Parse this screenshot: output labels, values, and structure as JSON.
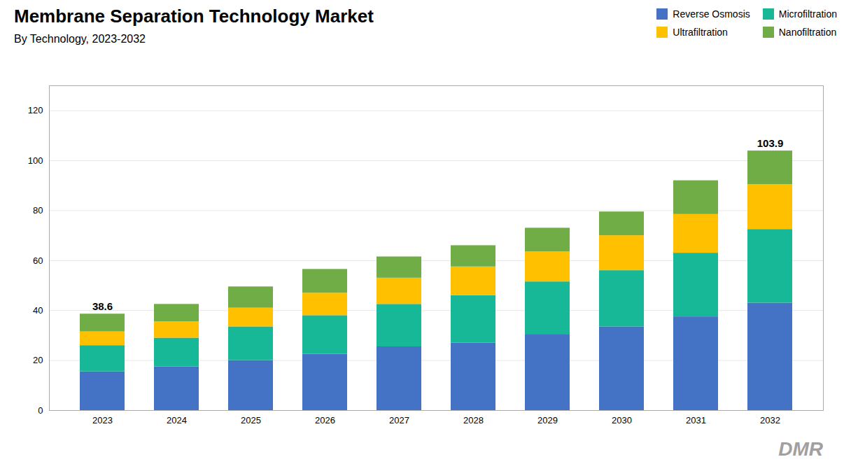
{
  "chart_data": {
    "type": "bar",
    "title": "Membrane Separation Technology Market",
    "subtitle": "By Technology, 2023-2032",
    "categories": [
      "2023",
      "2024",
      "2025",
      "2026",
      "2027",
      "2028",
      "2029",
      "2030",
      "2031",
      "2032"
    ],
    "series": [
      {
        "name": "Reverse Osmosis",
        "color": "#4472C4",
        "values": [
          15.5,
          17.5,
          20.0,
          22.5,
          25.5,
          27.0,
          30.5,
          33.5,
          37.5,
          43.0
        ]
      },
      {
        "name": "Microfiltration",
        "color": "#17B897",
        "values": [
          10.5,
          11.5,
          13.5,
          15.5,
          17.0,
          19.0,
          21.0,
          22.5,
          25.5,
          29.5
        ]
      },
      {
        "name": "Ultrafiltration",
        "color": "#FFC000",
        "values": [
          5.5,
          6.5,
          7.5,
          9.0,
          10.5,
          11.5,
          12.0,
          14.0,
          15.5,
          18.0
        ]
      },
      {
        "name": "Nanofiltration",
        "color": "#70AD47",
        "values": [
          7.1,
          7.0,
          8.5,
          9.5,
          8.5,
          8.5,
          9.5,
          9.5,
          13.5,
          13.4
        ]
      }
    ],
    "annotations": [
      {
        "category": "2023",
        "text": "38.6"
      },
      {
        "category": "2032",
        "text": "103.9"
      },
      {
        "text": "DMR"
      }
    ],
    "stacked": true,
    "ylim": [
      0,
      130
    ],
    "yticks": [
      0,
      20,
      40,
      60,
      80,
      100,
      120
    ],
    "grid": true,
    "legend": "upper right"
  }
}
